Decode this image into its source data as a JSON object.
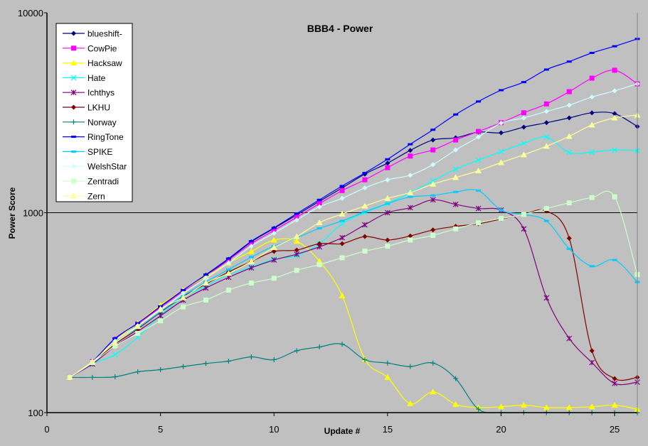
{
  "chart_data": {
    "type": "line",
    "title": "BBB4 - Power",
    "xlabel": "Update #",
    "ylabel": "Power Score",
    "xlim": [
      0,
      26
    ],
    "ylim": [
      100,
      10000
    ],
    "y_scale": "log",
    "x_ticks": [
      0,
      5,
      10,
      15,
      20,
      25
    ],
    "y_ticks": [
      100,
      1000,
      10000
    ],
    "y_tick_labels": [
      "100",
      "1000",
      "10000"
    ],
    "gridlines": "horizontal major only (1000)",
    "legend_position": "top-left",
    "smoothed": true,
    "x": [
      1,
      2,
      3,
      4,
      5,
      6,
      7,
      8,
      9,
      10,
      11,
      12,
      13,
      14,
      15,
      16,
      17,
      18,
      19,
      20,
      21,
      22,
      23,
      24,
      25,
      26
    ],
    "series": [
      {
        "name": "blueshift-",
        "color": "#000080",
        "marker": "diamond",
        "values": [
          150,
          180,
          234,
          280,
          340,
          408,
          488,
          585,
          715,
          835,
          975,
          1140,
          1330,
          1560,
          1770,
          2050,
          2310,
          2370,
          2530,
          2510,
          2680,
          2820,
          2980,
          3160,
          3130,
          2700
        ]
      },
      {
        "name": "CowPie",
        "color": "#ff00ff",
        "marker": "square",
        "values": [
          150,
          180,
          232,
          278,
          335,
          405,
          480,
          580,
          700,
          815,
          950,
          1110,
          1290,
          1460,
          1680,
          1920,
          2060,
          2310,
          2550,
          2820,
          3160,
          3500,
          4030,
          4710,
          5160,
          4410
        ]
      },
      {
        "name": "Hacksaw",
        "color": "#ffff00",
        "marker": "triangle",
        "values": [
          150,
          180,
          230,
          280,
          345,
          410,
          480,
          560,
          640,
          730,
          720,
          572,
          385,
          185,
          150,
          111,
          127,
          110,
          106,
          107,
          109,
          106,
          106,
          107,
          109,
          104
        ]
      },
      {
        "name": "Hate",
        "color": "#00ffff",
        "marker": "x",
        "values": [
          150,
          175,
          195,
          238,
          307,
          375,
          430,
          490,
          535,
          585,
          610,
          700,
          880,
          1000,
          1110,
          1260,
          1440,
          1650,
          1830,
          2020,
          2220,
          2390,
          2000,
          2010,
          2060,
          2040
        ]
      },
      {
        "name": "Ichthys",
        "color": "#800080",
        "marker": "asterisk",
        "values": [
          150,
          175,
          215,
          255,
          305,
          365,
          420,
          475,
          530,
          580,
          620,
          675,
          750,
          870,
          1000,
          1060,
          1160,
          1100,
          1050,
          1030,
          830,
          375,
          235,
          178,
          140,
          142
        ]
      },
      {
        "name": "LKHU",
        "color": "#800000",
        "marker": "diamond",
        "values": [
          150,
          178,
          220,
          262,
          318,
          380,
          440,
          505,
          570,
          640,
          650,
          700,
          700,
          760,
          730,
          765,
          820,
          855,
          880,
          930,
          980,
          1020,
          745,
          204,
          148,
          150
        ]
      },
      {
        "name": "Norway",
        "color": "#008080",
        "marker": "plus",
        "values": [
          150,
          150,
          151,
          160,
          164,
          170,
          176,
          181,
          190,
          184,
          204,
          213,
          220,
          184,
          177,
          170,
          177,
          148,
          104,
          100,
          100,
          100,
          100,
          100,
          100,
          100
        ]
      },
      {
        "name": "RingTone",
        "color": "#0000ff",
        "marker": "dash",
        "values": [
          150,
          180,
          235,
          280,
          340,
          410,
          490,
          590,
          720,
          840,
          990,
          1160,
          1360,
          1580,
          1850,
          2200,
          2600,
          3100,
          3600,
          4100,
          4500,
          5200,
          5700,
          6300,
          6800,
          7400
        ]
      },
      {
        "name": "SPIKE",
        "color": "#00ccff",
        "marker": "dash",
        "values": [
          150,
          178,
          225,
          265,
          320,
          385,
          450,
          520,
          600,
          680,
          750,
          835,
          910,
          1010,
          1110,
          1200,
          1220,
          1270,
          1290,
          1030,
          980,
          910,
          660,
          540,
          580,
          450
        ]
      },
      {
        "name": "WelshStar",
        "color": "#ccffff",
        "marker": "diamond",
        "values": [
          150,
          178,
          228,
          272,
          325,
          395,
          470,
          560,
          680,
          790,
          920,
          1070,
          1180,
          1330,
          1460,
          1540,
          1740,
          2060,
          2390,
          2810,
          2980,
          3210,
          3450,
          3790,
          4070,
          4410
        ]
      },
      {
        "name": "Zentradi",
        "color": "#ccffcc",
        "marker": "square",
        "values": [
          150,
          178,
          215,
          249,
          288,
          338,
          366,
          410,
          445,
          470,
          515,
          550,
          595,
          642,
          680,
          730,
          770,
          830,
          890,
          935,
          980,
          1050,
          1120,
          1190,
          1200,
          490
        ]
      },
      {
        "name": "Zern",
        "color": "#ffff99",
        "marker": "triangle",
        "values": [
          150,
          180,
          223,
          270,
          330,
          376,
          445,
          497,
          570,
          670,
          760,
          892,
          985,
          1080,
          1180,
          1260,
          1390,
          1500,
          1620,
          1780,
          1950,
          2150,
          2410,
          2750,
          2980,
          3080
        ]
      }
    ]
  }
}
